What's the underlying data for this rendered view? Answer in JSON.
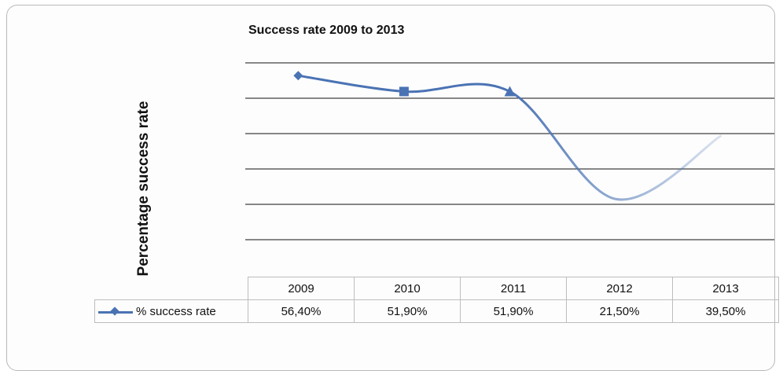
{
  "chart_data": {
    "type": "line",
    "title": "Success rate 2009 to 2013",
    "ylabel": "Percentage success rate",
    "xlabel": "",
    "categories": [
      "2009",
      "2010",
      "2011",
      "2012",
      "2013"
    ],
    "series": [
      {
        "name": "% success rate",
        "values": [
          56.4,
          51.9,
          51.9,
          21.5,
          39.5
        ],
        "labels": [
          "56,40%",
          "51,90%",
          "51,90%",
          "21,50%",
          "39,50%"
        ],
        "color": "#4a73b4"
      }
    ],
    "ylim": [
      0,
      60
    ],
    "grid": true,
    "legend": "data-table"
  }
}
